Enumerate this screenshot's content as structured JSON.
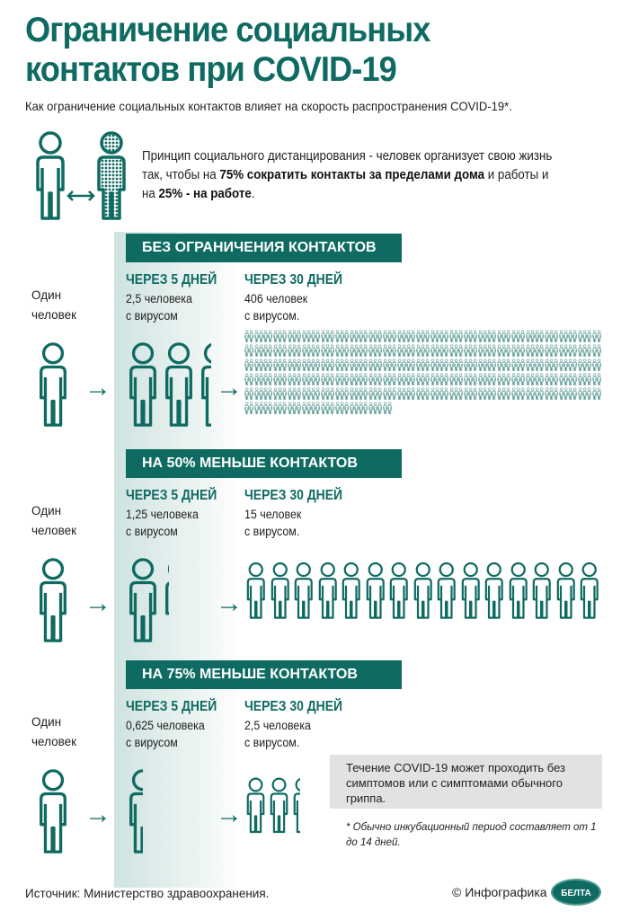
{
  "title_line1": "Ограничение социальных",
  "title_line2": "контактов при COVID-19",
  "subtitle": "Как ограничение социальных контактов влияет на скорость распространения COVID-19*.",
  "principle": {
    "p1": "Принцип социального дистанцирования - человек организует свою жизнь так, чтобы на ",
    "b1": "75% сократить контакты за пределами дома",
    "p2": " и работы и на ",
    "b2": "25% - на работе",
    "p3": "."
  },
  "accent_color": "#0f6b62",
  "sections": [
    {
      "header": "БЕЗ ОГРАНИЧЕНИЯ КОНТАКТОВ",
      "start": "Один человек",
      "d5_label": "ЧЕРЕЗ 5 ДНЕЙ",
      "d5_line1": "2,5 человека",
      "d5_line2": "с вирусом",
      "d30_label": "ЧЕРЕЗ 30 ДНЕЙ",
      "d30_line1": "406 человек",
      "d30_line2": "с вирусом.",
      "d5_count": 2.5,
      "d30_count": 406
    },
    {
      "header": "НА 50% МЕНЬШЕ КОНТАКТОВ",
      "start": "Один человек",
      "d5_label": "ЧЕРЕЗ 5 ДНЕЙ",
      "d5_line1": "1,25 человека",
      "d5_line2": "с вирусом",
      "d30_label": "ЧЕРЕЗ 30 ДНЕЙ",
      "d30_line1": "15 человек",
      "d30_line2": "с вирусом.",
      "d5_count": 1.25,
      "d30_count": 15
    },
    {
      "header": "НА 75% МЕНЬШЕ КОНТАКТОВ",
      "start": "Один человек",
      "d5_label": "ЧЕРЕЗ 5 ДНЕЙ",
      "d5_line1": "0,625 человека",
      "d5_line2": "с вирусом",
      "d30_label": "ЧЕРЕЗ 30 ДНЕЙ",
      "d30_line1": "2,5 человека",
      "d30_line2": "с вирусом.",
      "d5_count": 0.625,
      "d30_count": 2.5
    }
  ],
  "note": "Течение COVID-19 может проходить без симптомов или с симптомами обычного гриппа.",
  "footnote": "* Обычно инкубационный период составляет от 1 до 14 дней.",
  "source": "Источник: Министерство здравоохранения.",
  "credit": "© Инфографика",
  "logo_text": "БЕЛТА"
}
